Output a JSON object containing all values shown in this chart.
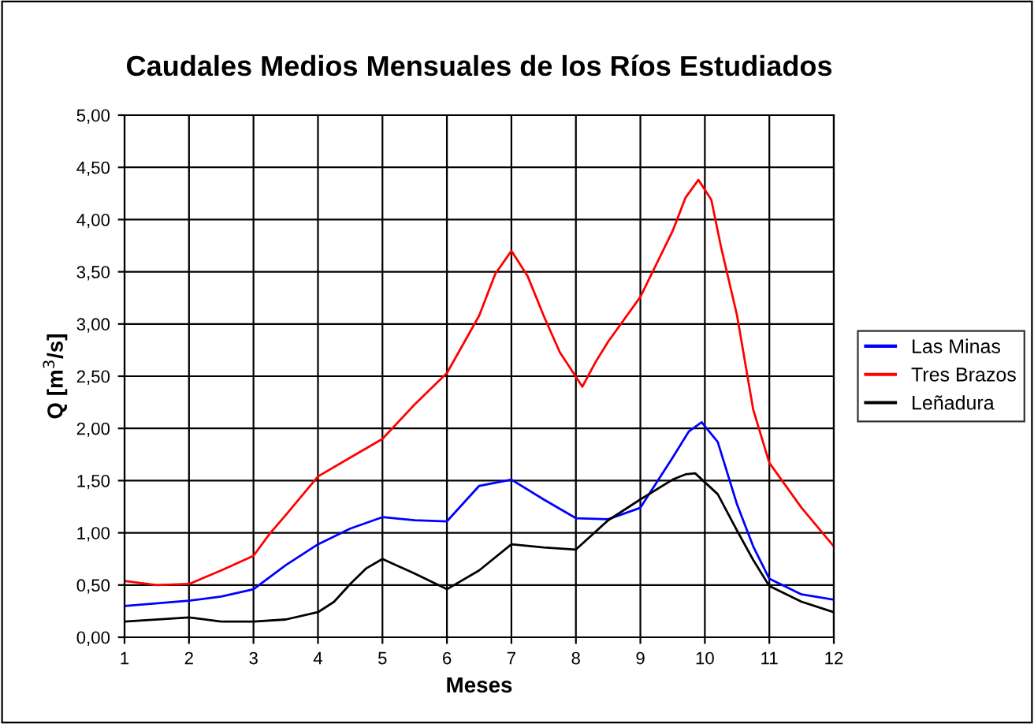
{
  "chart_data": {
    "type": "line",
    "title": "Caudales Medios Mensuales de los Ríos Estudiados",
    "xlabel": "Meses",
    "ylabel": "Q [m$^{3}$/s]",
    "series": [
      {
        "name": "Las Minas",
        "color": "#0000ff",
        "x": [
          1,
          2,
          2.5,
          3,
          3.5,
          4,
          4.5,
          5,
          5.5,
          6,
          6.5,
          7,
          7.5,
          8,
          8.5,
          9,
          9.5,
          9.75,
          9.95,
          10.2,
          10.5,
          10.75,
          11,
          11.5,
          12
        ],
        "values": [
          0.3,
          0.35,
          0.39,
          0.46,
          0.69,
          0.89,
          1.04,
          1.15,
          1.12,
          1.11,
          1.45,
          1.51,
          1.32,
          1.14,
          1.13,
          1.24,
          1.72,
          1.97,
          2.06,
          1.87,
          1.27,
          0.87,
          0.56,
          0.41,
          0.36
        ]
      },
      {
        "name": "Tres Brazos",
        "color": "#ff0000",
        "x": [
          1,
          1.5,
          2,
          2.5,
          3,
          3.25,
          3.5,
          4,
          4.5,
          5,
          5.5,
          6,
          6.5,
          6.75,
          7,
          7.25,
          7.5,
          7.75,
          8.1,
          8.3,
          8.5,
          9,
          9.5,
          9.7,
          9.9,
          10.1,
          10.25,
          10.5,
          10.75,
          11,
          11.5,
          12
        ],
        "values": [
          0.54,
          0.5,
          0.51,
          0.64,
          0.78,
          0.99,
          1.17,
          1.54,
          1.72,
          1.9,
          2.23,
          2.53,
          3.08,
          3.48,
          3.7,
          3.46,
          3.08,
          2.73,
          2.4,
          2.63,
          2.83,
          3.26,
          3.89,
          4.21,
          4.38,
          4.19,
          3.74,
          3.08,
          2.18,
          1.67,
          1.24,
          0.87
        ]
      },
      {
        "name": "Leñadura",
        "color": "#000000",
        "x": [
          1,
          2,
          2.5,
          3,
          3.5,
          4,
          4.25,
          4.5,
          4.75,
          5,
          5.5,
          6,
          6.5,
          7,
          7.5,
          8,
          8.5,
          9,
          9.5,
          9.7,
          9.85,
          10.2,
          10.5,
          10.75,
          11,
          11.5,
          12
        ],
        "values": [
          0.15,
          0.19,
          0.15,
          0.15,
          0.17,
          0.24,
          0.34,
          0.51,
          0.66,
          0.75,
          0.61,
          0.46,
          0.64,
          0.89,
          0.86,
          0.84,
          1.12,
          1.32,
          1.51,
          1.56,
          1.57,
          1.37,
          1.02,
          0.74,
          0.49,
          0.34,
          0.24
        ]
      }
    ],
    "xlim": [
      1,
      12
    ],
    "xticks": [
      1,
      2,
      3,
      4,
      5,
      6,
      7,
      8,
      9,
      10,
      11,
      12
    ],
    "ylim": [
      0,
      5
    ],
    "yticks": [
      {
        "value": 0,
        "label": "0,00"
      },
      {
        "value": 0.5,
        "label": "0,50"
      },
      {
        "value": 1,
        "label": "1,00"
      },
      {
        "value": 1.5,
        "label": "1,50"
      },
      {
        "value": 2,
        "label": "2,00"
      },
      {
        "value": 2.5,
        "label": "2,50"
      },
      {
        "value": 3,
        "label": "3,00"
      },
      {
        "value": 3.5,
        "label": "3,50"
      },
      {
        "value": 4,
        "label": "4,00"
      },
      {
        "value": 4.5,
        "label": "4,50"
      },
      {
        "value": 5,
        "label": "5,00"
      }
    ],
    "grid": true,
    "legend": "right",
    "marker": "none",
    "line_style": "solid"
  }
}
